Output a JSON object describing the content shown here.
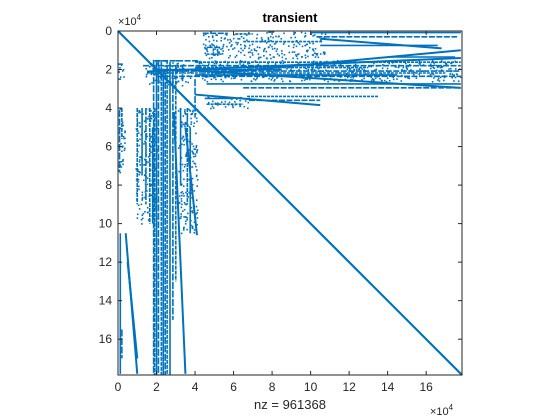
{
  "chart_data": {
    "type": "scatter",
    "title": "transient",
    "xlabel": "nz = 961368",
    "ylabel": "",
    "x_exponent_label": "×10",
    "x_exponent_power": "4",
    "y_exponent_label": "×10",
    "y_exponent_power": "4",
    "xlim": [
      0,
      17.86
    ],
    "ylim": [
      0,
      17.86
    ],
    "y_reversed": true,
    "unit_scale": 10000,
    "x_ticks": [
      0,
      2,
      4,
      6,
      8,
      10,
      12,
      14,
      16
    ],
    "y_ticks": [
      0,
      2,
      4,
      6,
      8,
      10,
      12,
      14,
      16
    ],
    "grid": false,
    "marker_color": "#0072BD",
    "structures": {
      "diagonal": {
        "from": [
          0,
          0
        ],
        "to": [
          17.86,
          17.86
        ]
      },
      "row_segments": [
        {
          "row": 0.12,
          "x": [
            4.4,
            5.7
          ]
        },
        {
          "row": 0.15,
          "x": [
            6.1,
            7.0
          ]
        },
        {
          "row": 0.08,
          "x": [
            10.0,
            17.8
          ]
        },
        {
          "row": 0.3,
          "x": [
            10.3,
            17.6
          ]
        },
        {
          "row": 0.55,
          "x": [
            6.5,
            10.6
          ]
        },
        {
          "row": 0.75,
          "x": [
            10.5,
            16.6
          ]
        },
        {
          "row": 0.85,
          "x": [
            4.6,
            5.3
          ]
        },
        {
          "row": 1.2,
          "x": [
            4.6,
            5.4
          ]
        },
        {
          "row": 1.35,
          "x": [
            14.0,
            17.5
          ]
        },
        {
          "row": 1.55,
          "x": [
            1.9,
            4.2
          ]
        },
        {
          "row": 1.62,
          "x": [
            4.0,
            17.8
          ]
        },
        {
          "row": 1.72,
          "x": [
            0.0,
            0.25
          ]
        },
        {
          "row": 1.8,
          "x": [
            1.3,
            17.8
          ]
        },
        {
          "row": 1.9,
          "x": [
            4.0,
            13.0
          ]
        },
        {
          "row": 2.0,
          "x": [
            1.8,
            8.5
          ]
        },
        {
          "row": 2.08,
          "x": [
            3.0,
            17.8
          ]
        },
        {
          "row": 2.18,
          "x": [
            1.5,
            17.0
          ]
        },
        {
          "row": 2.28,
          "x": [
            4.0,
            14.5
          ]
        },
        {
          "row": 2.35,
          "x": [
            2.0,
            17.8
          ]
        },
        {
          "row": 2.5,
          "x": [
            0.0,
            0.2
          ]
        },
        {
          "row": 2.75,
          "x": [
            4.6,
            17.8
          ]
        },
        {
          "row": 2.95,
          "x": [
            6.5,
            17.8
          ]
        },
        {
          "row": 3.4,
          "x": [
            6.7,
            13.5
          ]
        },
        {
          "row": 3.5,
          "x": [
            4.5,
            6.0
          ]
        },
        {
          "row": 3.6,
          "x": [
            6.8,
            10.5
          ]
        },
        {
          "row": 3.8,
          "x": [
            4.6,
            6.5
          ]
        }
      ],
      "sloped_segments": [
        {
          "from": [
            4.0,
            2.05
          ],
          "to": [
            17.8,
            2.95
          ]
        },
        {
          "from": [
            1.5,
            2.1
          ],
          "to": [
            17.8,
            1.4
          ]
        },
        {
          "from": [
            5.0,
            2.2
          ],
          "to": [
            17.8,
            1.0
          ]
        },
        {
          "from": [
            4.0,
            3.3
          ],
          "to": [
            10.5,
            3.85
          ]
        },
        {
          "from": [
            10.5,
            0.4
          ],
          "to": [
            16.8,
            0.9
          ]
        },
        {
          "from": [
            2.9,
            4.2
          ],
          "to": [
            3.5,
            17.8
          ]
        },
        {
          "from": [
            3.5,
            5.0
          ],
          "to": [
            4.1,
            10.6
          ]
        },
        {
          "from": [
            0.5,
            12.0
          ],
          "to": [
            1.0,
            17.0
          ]
        },
        {
          "from": [
            0.4,
            10.5
          ],
          "to": [
            1.0,
            17.8
          ]
        }
      ],
      "column_segments": [
        {
          "col": 0.08,
          "y": [
            4.1,
            7.3
          ]
        },
        {
          "col": 0.2,
          "y": [
            4.0,
            5.6
          ]
        },
        {
          "col": 0.12,
          "y": [
            10.5,
            17.8
          ]
        },
        {
          "col": 0.2,
          "y": [
            15.5,
            17.0
          ]
        },
        {
          "col": 1.0,
          "y": [
            4.0,
            9.0
          ]
        },
        {
          "col": 1.25,
          "y": [
            4.0,
            7.5
          ]
        },
        {
          "col": 1.45,
          "y": [
            4.0,
            9.0
          ]
        },
        {
          "col": 1.65,
          "y": [
            4.0,
            10.0
          ]
        },
        {
          "col": 1.8,
          "y": [
            5.0,
            10.0
          ]
        },
        {
          "col": 1.85,
          "y": [
            1.5,
            17.86
          ]
        },
        {
          "col": 1.9,
          "y": [
            4.0,
            17.86
          ]
        },
        {
          "col": 2.0,
          "y": [
            1.5,
            17.86
          ]
        },
        {
          "col": 2.1,
          "y": [
            1.5,
            17.86
          ]
        },
        {
          "col": 2.25,
          "y": [
            1.6,
            17.86
          ]
        },
        {
          "col": 2.35,
          "y": [
            2.0,
            17.86
          ]
        },
        {
          "col": 2.45,
          "y": [
            2.2,
            17.86
          ]
        },
        {
          "col": 2.55,
          "y": [
            1.5,
            17.86
          ]
        },
        {
          "col": 2.7,
          "y": [
            1.6,
            17.86
          ]
        },
        {
          "col": 2.85,
          "y": [
            2.0,
            15.0
          ]
        },
        {
          "col": 3.0,
          "y": [
            1.8,
            13.0
          ]
        },
        {
          "col": 3.25,
          "y": [
            4.0,
            8.0
          ]
        },
        {
          "col": 3.35,
          "y": [
            1.8,
            2.6
          ]
        },
        {
          "col": 3.6,
          "y": [
            4.0,
            9.0
          ]
        },
        {
          "col": 3.75,
          "y": [
            5.0,
            10.5
          ]
        },
        {
          "col": 4.0,
          "y": [
            2.5,
            4.5
          ]
        }
      ],
      "dotted_bands": [
        {
          "x": [
            1.4,
            3.8
          ],
          "y": [
            1.5,
            2.8
          ]
        },
        {
          "x": [
            4.0,
            17.8
          ],
          "y": [
            1.5,
            2.6
          ]
        },
        {
          "x": [
            0.0,
            0.3
          ],
          "y": [
            1.5,
            2.5
          ]
        },
        {
          "x": [
            0.0,
            0.35
          ],
          "y": [
            4.0,
            7.5
          ]
        },
        {
          "x": [
            0.9,
            2.0
          ],
          "y": [
            4.0,
            10.0
          ]
        },
        {
          "x": [
            3.1,
            4.1
          ],
          "y": [
            4.0,
            10.5
          ]
        },
        {
          "x": [
            4.4,
            10.8
          ],
          "y": [
            0.0,
            1.4
          ]
        },
        {
          "x": [
            4.5,
            6.8
          ],
          "y": [
            3.4,
            4.0
          ]
        }
      ]
    }
  }
}
